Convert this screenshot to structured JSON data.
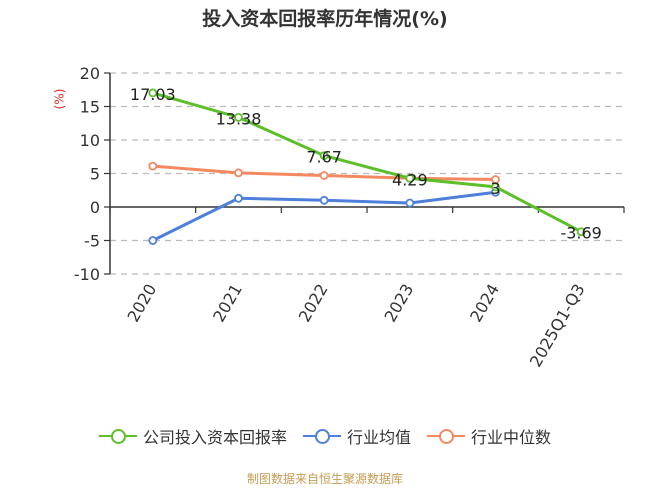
{
  "title": "投入资本回报率历年情况(%)",
  "y_unit_label": "(%)",
  "footer": "制图数据来自恒生聚源数据库",
  "colors": {
    "company": "#5cbf2a",
    "industry_avg": "#4e7fdb",
    "industry_median": "#f4895f",
    "axis": "#333333",
    "grid": "#bbbbbb",
    "unit_label": "#e8212a",
    "footer": "#c69c52"
  },
  "legend": [
    {
      "name": "公司投入资本回报率",
      "color": "#5cbf2a"
    },
    {
      "name": "行业均值",
      "color": "#4e7fdb"
    },
    {
      "name": "行业中位数",
      "color": "#f4895f"
    }
  ],
  "chart_data": {
    "type": "line",
    "title": "投入资本回报率历年情况(%)",
    "xlabel": "",
    "ylabel": "(%)",
    "ylim": [
      -10,
      20
    ],
    "yticks": [
      20,
      15,
      10,
      5,
      0,
      -5,
      -10
    ],
    "grid": true,
    "legend_position": "bottom",
    "categories": [
      "2020",
      "2021",
      "2022",
      "2023",
      "2024",
      "2025Q1-Q3"
    ],
    "series": [
      {
        "name": "公司投入资本回报率",
        "values": [
          17.03,
          13.38,
          7.67,
          4.29,
          3.0,
          -3.69
        ],
        "labels": [
          "17.03",
          "13.38",
          "7.67",
          "4.29",
          "3",
          "-3.69"
        ]
      },
      {
        "name": "行业均值",
        "values": [
          -5.0,
          1.3,
          1.0,
          0.6,
          2.2,
          null
        ]
      },
      {
        "name": "行业中位数",
        "values": [
          6.1,
          5.1,
          4.7,
          4.3,
          4.1,
          null
        ]
      }
    ]
  }
}
